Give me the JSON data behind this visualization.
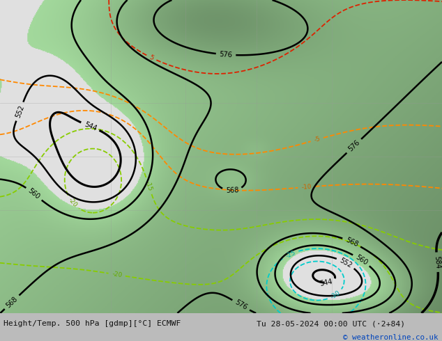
{
  "title_left": "Height/Temp. 500 hPa [gdmp][°C] ECMWF",
  "title_right": "Tu 28-05-2024 00:00 UTC (·2+84)",
  "copyright": "© weatheronline.co.uk",
  "bottom_bar_color": "#cccccc",
  "copyright_color": "#0044bb",
  "figsize": [
    6.34,
    4.9
  ],
  "dpi": 100
}
